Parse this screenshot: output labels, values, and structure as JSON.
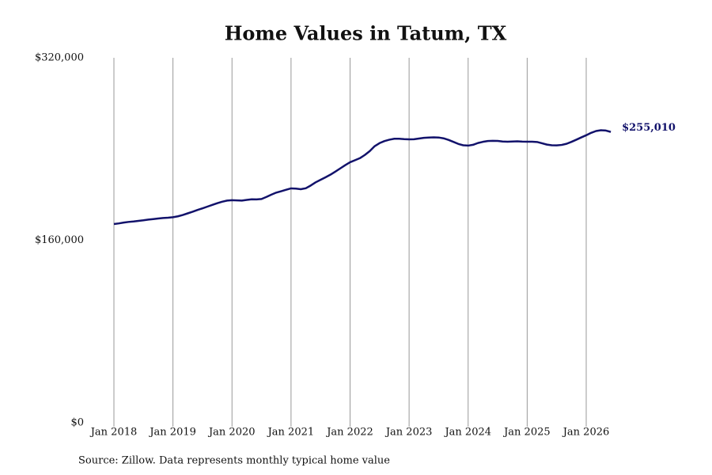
{
  "chart_data": {
    "type": "line",
    "title": "Home Values in Tatum, TX",
    "source": "Source: Zillow. Data represents monthly typical home value",
    "x": [
      "2018-01",
      "2018-02",
      "2018-03",
      "2018-04",
      "2018-05",
      "2018-06",
      "2018-07",
      "2018-08",
      "2018-09",
      "2018-10",
      "2018-11",
      "2018-12",
      "2019-01",
      "2019-02",
      "2019-03",
      "2019-04",
      "2019-05",
      "2019-06",
      "2019-07",
      "2019-08",
      "2019-09",
      "2019-10",
      "2019-11",
      "2019-12",
      "2020-01",
      "2020-02",
      "2020-03",
      "2020-04",
      "2020-05",
      "2020-06",
      "2020-07",
      "2020-08",
      "2020-09",
      "2020-10",
      "2020-11",
      "2020-12",
      "2021-01",
      "2021-02",
      "2021-03",
      "2021-04",
      "2021-05",
      "2021-06",
      "2021-07",
      "2021-08",
      "2021-09",
      "2021-10",
      "2021-11",
      "2021-12",
      "2022-01",
      "2022-02",
      "2022-03",
      "2022-04",
      "2022-05",
      "2022-06",
      "2022-07",
      "2022-08",
      "2022-09",
      "2022-10",
      "2022-11",
      "2022-12",
      "2023-01",
      "2023-02",
      "2023-03",
      "2023-04",
      "2023-05",
      "2023-06",
      "2023-07",
      "2023-08",
      "2023-09",
      "2023-10",
      "2023-11",
      "2023-12",
      "2024-01",
      "2024-02",
      "2024-03",
      "2024-04",
      "2024-05",
      "2024-06",
      "2024-07",
      "2024-08",
      "2024-09",
      "2024-10",
      "2024-11",
      "2024-12",
      "2025-01",
      "2025-02",
      "2025-03",
      "2025-04",
      "2025-05",
      "2025-06",
      "2025-07",
      "2025-08",
      "2025-09",
      "2025-10",
      "2025-11",
      "2025-12",
      "2026-01",
      "2026-02",
      "2026-03",
      "2026-04",
      "2026-05",
      "2026-06"
    ],
    "series": [
      {
        "color": "#12126b",
        "values": [
          174200,
          174800,
          175500,
          176100,
          176500,
          177000,
          177500,
          178100,
          178600,
          179100,
          179500,
          179800,
          180200,
          181000,
          182200,
          183600,
          185000,
          186600,
          188000,
          189500,
          191000,
          192500,
          193800,
          194800,
          195100,
          195000,
          194800,
          195400,
          195900,
          195800,
          196200,
          198000,
          200000,
          201800,
          203000,
          204300,
          205500,
          205300,
          204800,
          205600,
          208000,
          210800,
          213000,
          215200,
          217500,
          220200,
          223000,
          225800,
          228400,
          230200,
          232000,
          234800,
          238200,
          242500,
          245200,
          247000,
          248200,
          249000,
          249000,
          248700,
          248500,
          248600,
          249200,
          249800,
          250100,
          250200,
          250100,
          249400,
          248000,
          246300,
          244500,
          243300,
          243000,
          243700,
          245300,
          246300,
          247000,
          247200,
          247100,
          246600,
          246400,
          246600,
          246800,
          246500,
          246400,
          246400,
          246200,
          245100,
          243900,
          243300,
          243200,
          243600,
          244600,
          246300,
          248200,
          250200,
          252100,
          254200,
          255800,
          256500,
          256200,
          255010
        ],
        "value_labels": [
          null,
          null,
          null,
          null,
          null,
          null,
          null,
          null,
          null,
          null,
          null,
          null,
          null,
          null,
          null,
          null,
          null,
          null,
          null,
          null,
          null,
          null,
          null,
          null,
          null,
          null,
          null,
          null,
          null,
          null,
          null,
          null,
          null,
          null,
          null,
          null,
          null,
          null,
          null,
          null,
          null,
          null,
          null,
          null,
          null,
          null,
          null,
          null,
          null,
          null,
          null,
          null,
          null,
          null,
          null,
          null,
          null,
          null,
          null,
          null,
          null,
          null,
          null,
          null,
          null,
          null,
          null,
          null,
          null,
          null,
          null,
          null,
          null,
          null,
          null,
          null,
          null,
          null,
          null,
          null,
          null,
          null,
          null,
          null,
          null,
          null,
          null,
          null,
          null,
          null,
          null,
          null,
          null,
          null,
          null,
          null,
          null,
          null,
          null,
          null,
          null,
          "$255,010"
        ]
      }
    ],
    "ylim": [
      0,
      320000
    ],
    "yticks": [
      {
        "value": 0,
        "label": "$0"
      },
      {
        "value": 160000,
        "label": "$160,000"
      },
      {
        "value": 320000,
        "label": "$320,000"
      }
    ],
    "xticks": [
      {
        "value": "2018-01",
        "label": "Jan 2018"
      },
      {
        "value": "2019-01",
        "label": "Jan 2019"
      },
      {
        "value": "2020-01",
        "label": "Jan 2020"
      },
      {
        "value": "2021-01",
        "label": "Jan 2021"
      },
      {
        "value": "2022-01",
        "label": "Jan 2022"
      },
      {
        "value": "2023-01",
        "label": "Jan 2023"
      },
      {
        "value": "2024-01",
        "label": "Jan 2024"
      },
      {
        "value": "2025-01",
        "label": "Jan 2025"
      },
      {
        "value": "2026-01",
        "label": "Jan 2026"
      }
    ],
    "grid": "x"
  }
}
